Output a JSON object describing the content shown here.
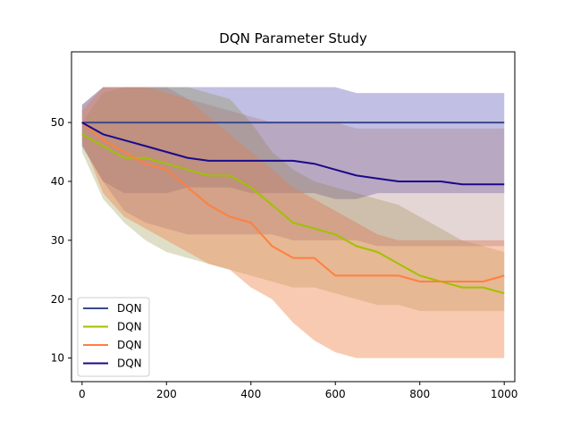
{
  "chart_data": {
    "type": "line",
    "title": "DQN Parameter Study",
    "xlabel": "",
    "ylabel": "",
    "xlim": [
      -25,
      1025
    ],
    "ylim": [
      6,
      62
    ],
    "x_ticks": [
      0,
      200,
      400,
      600,
      800,
      1000
    ],
    "y_ticks": [
      10,
      20,
      30,
      40,
      50
    ],
    "grid": false,
    "legend_position": "lower-left",
    "series": [
      {
        "name": "DQN",
        "color": "#3a4a8c",
        "band_color": "#1f1a9a",
        "band_opacity": 0.28,
        "x": [
          0,
          50,
          100,
          150,
          200,
          250,
          300,
          350,
          400,
          450,
          500,
          550,
          600,
          650,
          700,
          750,
          800,
          850,
          900,
          950,
          1000
        ],
        "y": [
          50,
          50,
          50,
          50,
          50,
          50,
          50,
          50,
          50,
          50,
          50,
          50,
          50,
          50,
          50,
          50,
          50,
          50,
          50,
          50,
          50
        ],
        "lower": [
          46,
          40,
          38,
          38,
          38,
          39,
          39,
          39,
          38,
          38,
          38,
          38,
          37,
          37,
          38,
          38,
          38,
          38,
          38,
          38,
          38
        ],
        "upper": [
          53,
          56,
          56,
          56,
          56,
          56,
          56,
          56,
          56,
          56,
          56,
          56,
          56,
          55,
          55,
          55,
          55,
          55,
          55,
          55,
          55
        ]
      },
      {
        "name": "DQN",
        "color": "#9ec200",
        "band_color": "#808020",
        "band_opacity": 0.25,
        "x": [
          0,
          50,
          100,
          150,
          200,
          250,
          300,
          350,
          400,
          450,
          500,
          550,
          600,
          650,
          700,
          750,
          800,
          850,
          900,
          950,
          1000
        ],
        "y": [
          48,
          46,
          44,
          44,
          43,
          42,
          41,
          41,
          39,
          36,
          33,
          32,
          31,
          29,
          28,
          26,
          24,
          23,
          22,
          22,
          21
        ],
        "lower": [
          45,
          37,
          33,
          30,
          28,
          27,
          26,
          25,
          24,
          23,
          22,
          22,
          21,
          20,
          19,
          19,
          18,
          18,
          18,
          18,
          18
        ],
        "upper": [
          50,
          55,
          56,
          56,
          56,
          56,
          55,
          54,
          50,
          45,
          42,
          40,
          39,
          38,
          37,
          36,
          34,
          32,
          30,
          29,
          28
        ]
      },
      {
        "name": "DQN",
        "color": "#ff8040",
        "band_color": "#f08a55",
        "band_opacity": 0.45,
        "x": [
          0,
          50,
          100,
          150,
          200,
          250,
          300,
          350,
          400,
          450,
          500,
          550,
          600,
          650,
          700,
          750,
          800,
          850,
          900,
          950,
          1000
        ],
        "y": [
          50,
          47,
          45,
          43,
          42,
          39,
          36,
          34,
          33,
          29,
          27,
          27,
          24,
          24,
          24,
          24,
          23,
          23,
          23,
          23,
          24
        ],
        "lower": [
          47,
          38,
          34,
          32,
          30,
          28,
          26,
          25,
          22,
          20,
          16,
          13,
          11,
          10,
          10,
          10,
          10,
          10,
          10,
          10,
          10
        ],
        "upper": [
          52,
          56,
          56,
          56,
          55,
          54,
          51,
          48,
          45,
          42,
          39,
          37,
          35,
          33,
          31,
          30,
          30,
          30,
          30,
          30,
          30
        ]
      },
      {
        "name": "DQN",
        "color": "#1a0a8c",
        "band_color": "#a06a6a",
        "band_opacity": 0.28,
        "x": [
          0,
          50,
          100,
          150,
          200,
          250,
          300,
          350,
          400,
          450,
          500,
          550,
          600,
          650,
          700,
          750,
          800,
          850,
          900,
          950,
          1000
        ],
        "y": [
          50,
          48,
          47,
          46,
          45,
          44,
          43.5,
          43.5,
          43.5,
          43.5,
          43.5,
          43,
          42,
          41,
          40.5,
          40,
          40,
          40,
          39.5,
          39.5,
          39.5
        ],
        "lower": [
          46,
          40,
          35,
          33,
          32,
          31,
          31,
          31,
          31,
          31,
          30,
          30,
          30,
          30,
          29,
          29,
          29,
          29,
          29,
          29,
          29
        ],
        "upper": [
          53,
          56,
          56,
          56,
          56,
          54,
          53,
          52,
          51,
          50,
          50,
          50,
          50,
          49,
          49,
          49,
          49,
          49,
          49,
          49,
          49
        ]
      }
    ]
  }
}
